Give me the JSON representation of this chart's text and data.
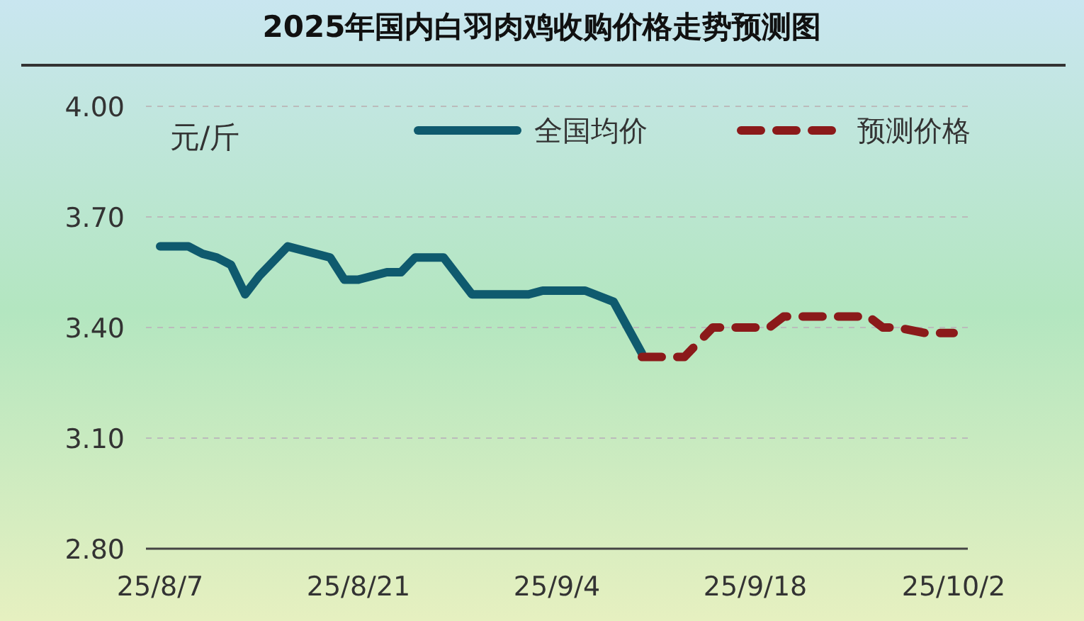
{
  "chart_data": {
    "type": "line",
    "title": "2025年国内白羽肉鸡收购价格走势预测图",
    "ylabel": "元/斤",
    "xlim": [
      "2025-08-06",
      "2025-10-03"
    ],
    "xticks": [
      {
        "value": "2025-08-07",
        "label": "25/8/7"
      },
      {
        "value": "2025-08-21",
        "label": "25/8/21"
      },
      {
        "value": "2025-09-04",
        "label": "25/9/4"
      },
      {
        "value": "2025-09-18",
        "label": "25/9/18"
      },
      {
        "value": "2025-10-02",
        "label": "25/10/2"
      }
    ],
    "ylim": [
      2.8,
      4.0
    ],
    "yticks": [
      {
        "value": 2.8,
        "label": "2.80"
      },
      {
        "value": 3.1,
        "label": "3.10"
      },
      {
        "value": 3.4,
        "label": "3.40"
      },
      {
        "value": 3.7,
        "label": "3.70"
      },
      {
        "value": 4.0,
        "label": "4.00"
      }
    ],
    "grid": "y",
    "legend": "top right",
    "series": [
      {
        "name": "全国均价",
        "color": "#0f5a6e",
        "line_style": "solid",
        "x": [
          "2025-08-07",
          "2025-08-09",
          "2025-08-10",
          "2025-08-11",
          "2025-08-12",
          "2025-08-13",
          "2025-08-14",
          "2025-08-16",
          "2025-08-18",
          "2025-08-19",
          "2025-08-20",
          "2025-08-21",
          "2025-08-23",
          "2025-08-24",
          "2025-08-25",
          "2025-08-27",
          "2025-08-29",
          "2025-09-02",
          "2025-09-03",
          "2025-09-06",
          "2025-09-08",
          "2025-09-09",
          "2025-09-10"
        ],
        "values": [
          3.62,
          3.62,
          3.6,
          3.59,
          3.57,
          3.49,
          3.54,
          3.62,
          3.6,
          3.59,
          3.53,
          3.53,
          3.55,
          3.55,
          3.59,
          3.59,
          3.49,
          3.49,
          3.5,
          3.5,
          3.47,
          3.4,
          3.33
        ]
      },
      {
        "name": "预测价格",
        "color": "#8b1a1a",
        "line_style": "dashed",
        "x": [
          "2025-09-10",
          "2025-09-12",
          "2025-09-13",
          "2025-09-15",
          "2025-09-19",
          "2025-09-20",
          "2025-09-26",
          "2025-09-27",
          "2025-09-28",
          "2025-09-30",
          "2025-10-02"
        ],
        "values": [
          3.32,
          3.32,
          3.32,
          3.4,
          3.4,
          3.43,
          3.43,
          3.4,
          3.4,
          3.385,
          3.385
        ]
      }
    ]
  }
}
